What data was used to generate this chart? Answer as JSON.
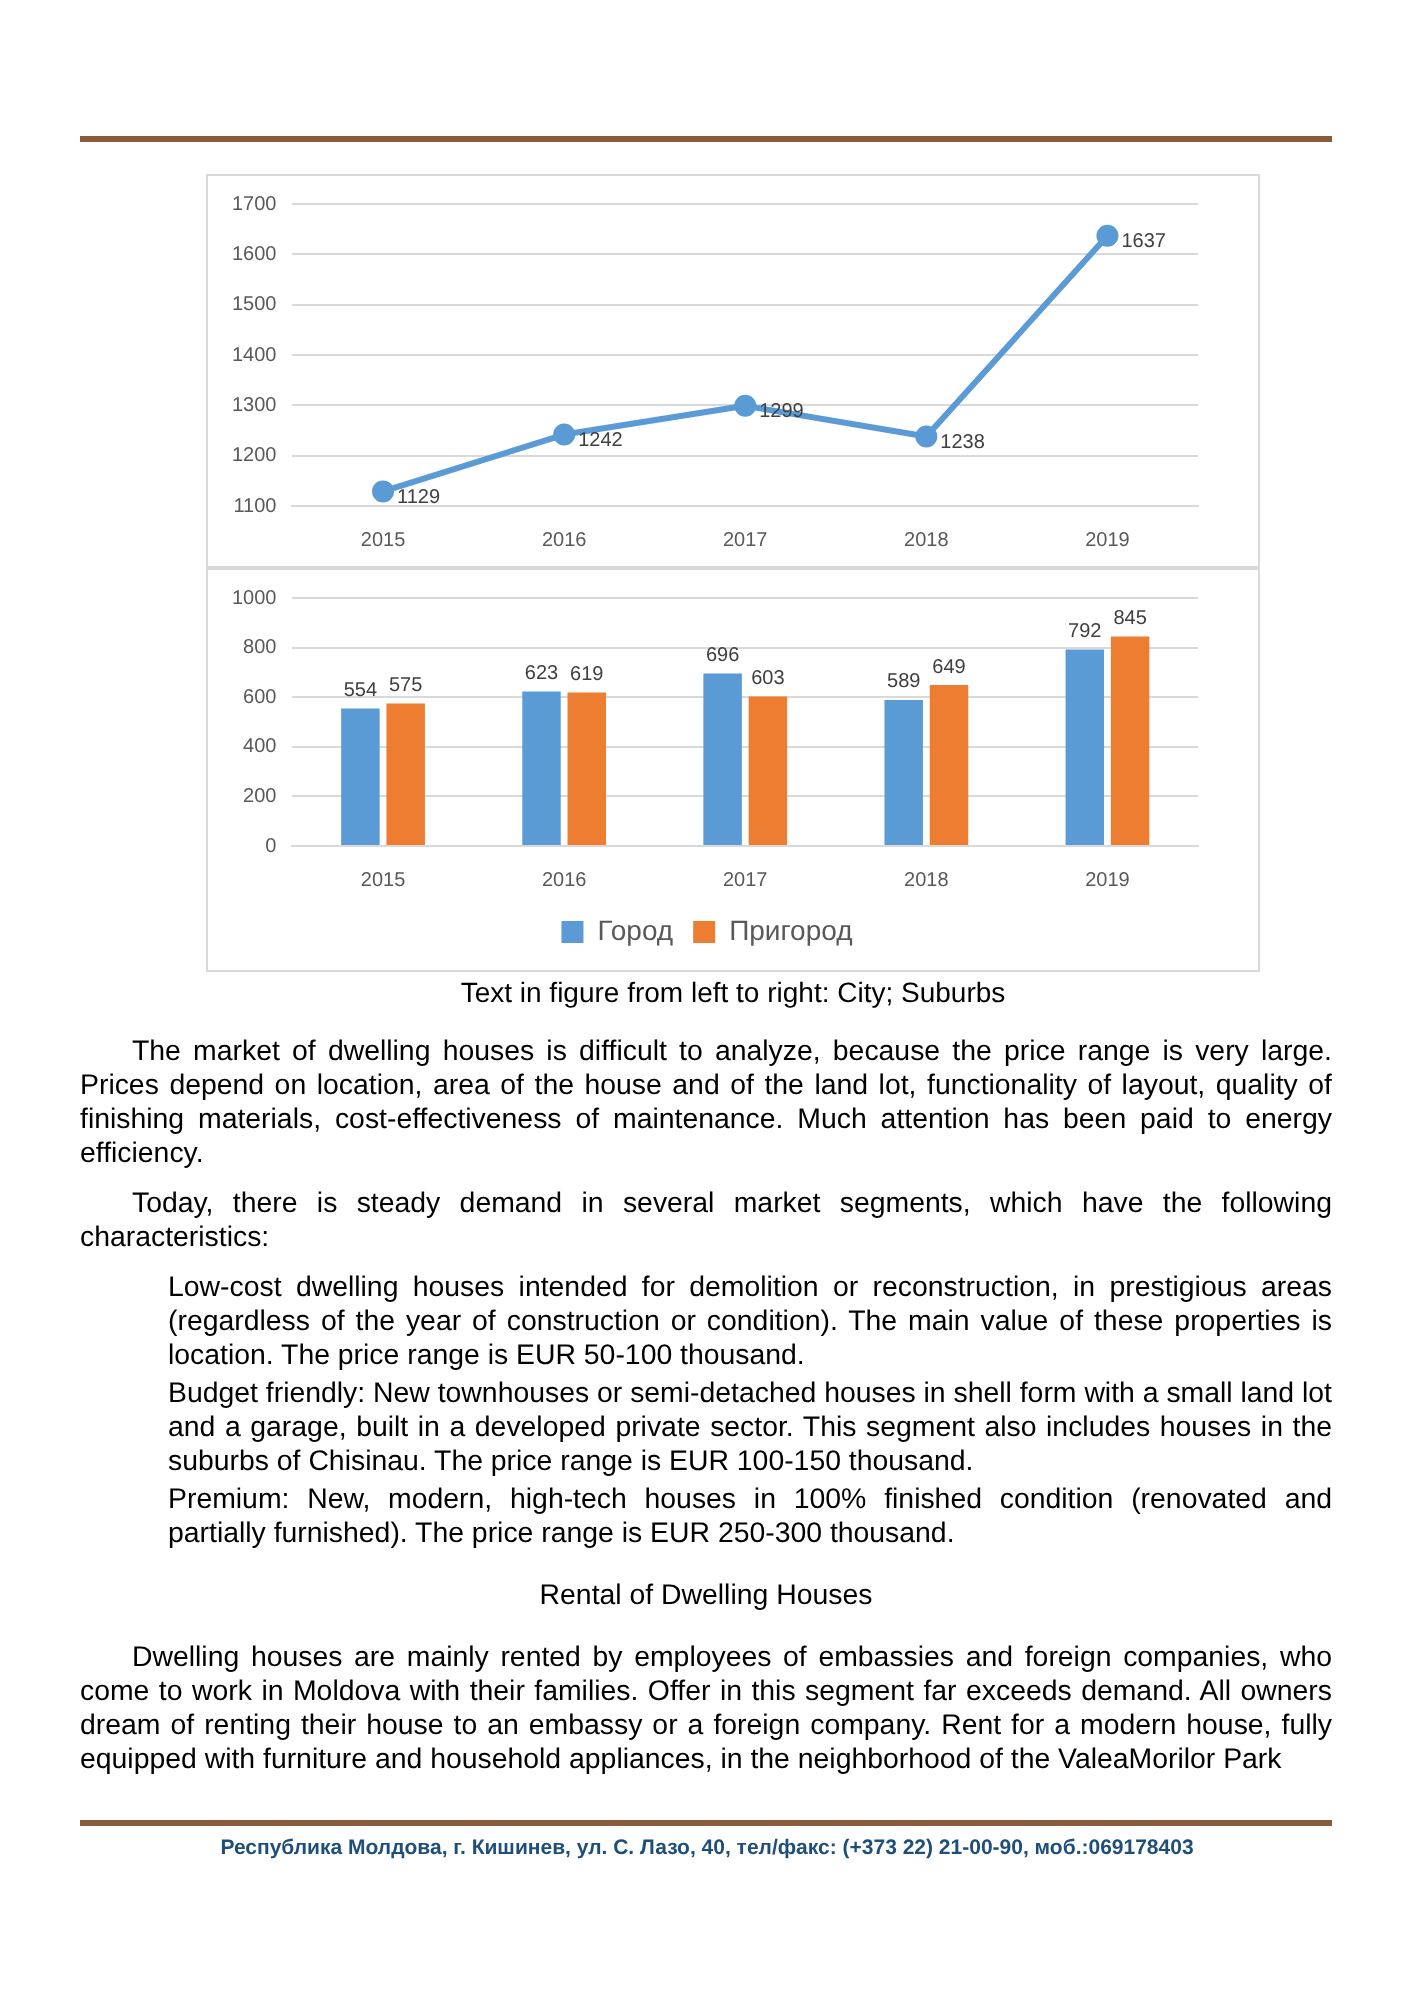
{
  "chart_data": [
    {
      "type": "line",
      "categories": [
        "2015",
        "2016",
        "2017",
        "2018",
        "2019"
      ],
      "series": [
        {
          "color": "#5b9bd5",
          "values": [
            1129,
            1242,
            1299,
            1238,
            1637
          ]
        }
      ],
      "ylim": [
        1100,
        1700
      ],
      "yticks": [
        1100,
        1200,
        1300,
        1400,
        1500,
        1600,
        1700
      ],
      "grid": "y",
      "marker": "circle",
      "data_labels": true,
      "legend": false
    },
    {
      "type": "bar",
      "categories": [
        "2015",
        "2016",
        "2017",
        "2018",
        "2019"
      ],
      "series": [
        {
          "name": "Город",
          "color": "#5b9bd5",
          "values": [
            554,
            623,
            696,
            589,
            792
          ]
        },
        {
          "name": "Пригород",
          "color": "#ed7d31",
          "values": [
            575,
            619,
            603,
            649,
            845
          ]
        }
      ],
      "ylim": [
        0,
        1000
      ],
      "yticks": [
        0,
        200,
        400,
        600,
        800,
        1000
      ],
      "grid": "y",
      "data_labels": true,
      "legend": "bottom",
      "annotations": [
        "Text in figure from left to right: City; Suburbs"
      ]
    },
    {
      "type": "other",
      "annotations": [
        "The market of dwelling houses is difficult to analyze, because the price range is very large. Prices depend on location, area of the house and of the land lot, functionality of layout, quality of finishing materials, cost-effectiveness of maintenance. Much attention has been paid to energy efficiency.",
        "Today, there is steady demand in several market segments, which have the following characteristics:",
        "Low-cost dwelling houses intended for demolition or reconstruction, in prestigious areas (regardless of the year of construction or condition). The main value of these properties is location. The price range is EUR 50-100 thousand.",
        "Budget friendly: New townhouses or semi-detached houses in shell form with a small land lot and a garage, built in a developed private sector. This segment also includes houses in the suburbs of Chisinau. The price range is EUR 100-150 thousand.",
        "Premium: New, modern, high-tech houses in 100% finished condition (renovated and partially furnished). The price range is EUR 250-300 thousand.",
        "Rental of Dwelling Houses",
        "Dwelling houses are mainly rented by employees of embassies and foreign companies, who come to work in Moldova with their families. Offer in this segment far exceeds demand. All owners dream of renting their house to an embassy or a foreign company. Rent for a modern house, fully equipped with furniture and household appliances, in the neighborhood of the ValeaMorilor Park",
        "Республика Молдова, г. Кишинев, ул. С. Лазо, 40, тел/факс: (+373 22) 21-00-90, моб.:069178403"
      ]
    }
  ]
}
